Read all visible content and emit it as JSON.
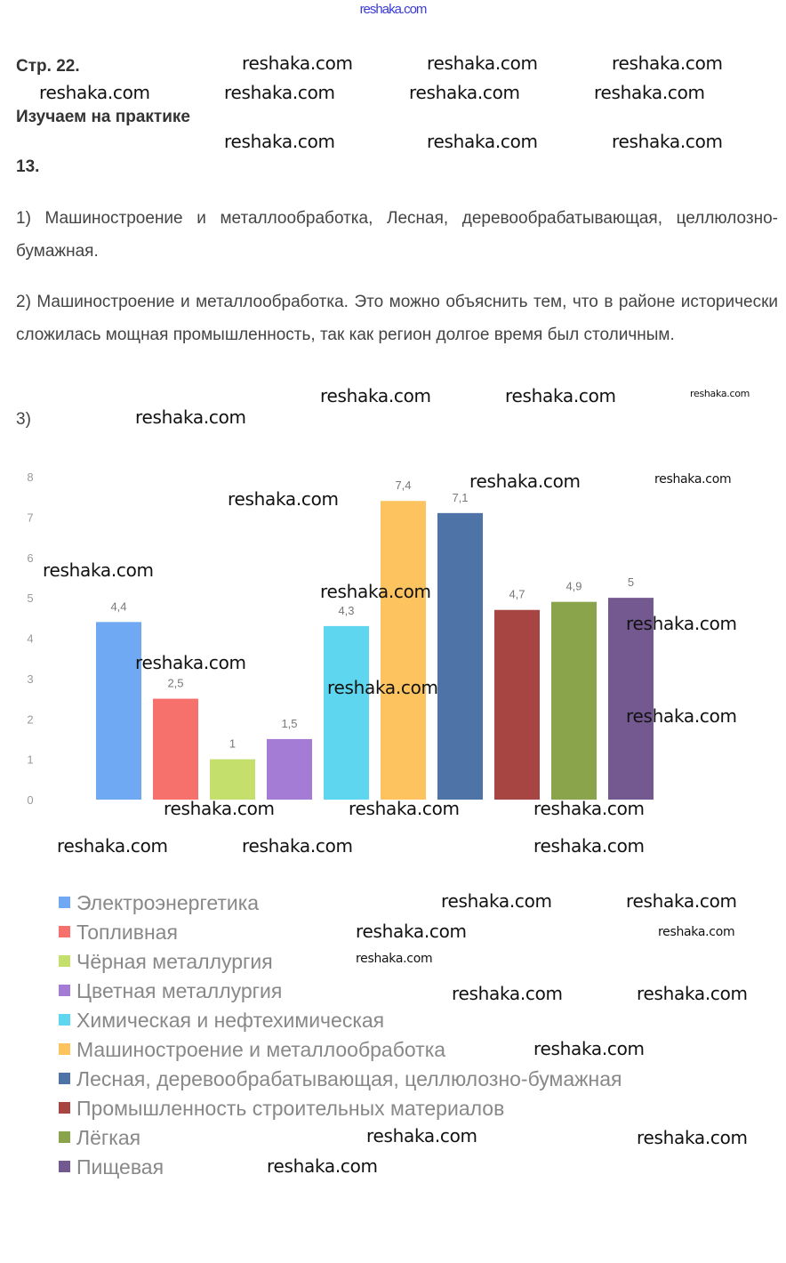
{
  "header_link": "reshaka.com",
  "page_ref": "Стр. 22.",
  "section_title": "Изучаем на практике",
  "task_number": "13.",
  "answers": [
    "1) Машиностроение и металлообработка, Лесная, деревообрабатывающая, целлюлозно-бумажная.",
    "2) Машиностроение и металлообработка. Это можно объяснить тем, что в районе исторически сложилась мощная промышленность, так как регион долгое время был столичным.",
    "3)"
  ],
  "watermark": "reshaka.com",
  "chart_data": {
    "type": "bar",
    "categories": [
      "Электроэнергетика",
      "Топливная",
      "Чёрная металлургия",
      "Цветная металлургия",
      "Химическая и нефтехимическая",
      "Машиностроение и металлообработка",
      "Лесная, деревообрабатывающая, целлюлозно-бумажная",
      "Промышленность строительных материалов",
      "Лёгкая",
      "Пищевая"
    ],
    "values": [
      4.4,
      2.5,
      1,
      1.5,
      4.3,
      7.4,
      7.1,
      4.7,
      4.9,
      5
    ],
    "value_labels": [
      "4,4",
      "2,5",
      "1",
      "1,5",
      "4,3",
      "7,4",
      "7,1",
      "4,7",
      "4,9",
      "5"
    ],
    "colors": [
      "#6fa9f4",
      "#f7716c",
      "#c4df6c",
      "#a47cd6",
      "#5fd6ef",
      "#fcc35f",
      "#4e73a6",
      "#a64542",
      "#89a44b",
      "#735990"
    ],
    "ylim": [
      0,
      8
    ],
    "yticks": [
      "0",
      "1",
      "2",
      "3",
      "4",
      "5",
      "6",
      "7",
      "8"
    ],
    "grid": false,
    "legend": "bottom"
  }
}
